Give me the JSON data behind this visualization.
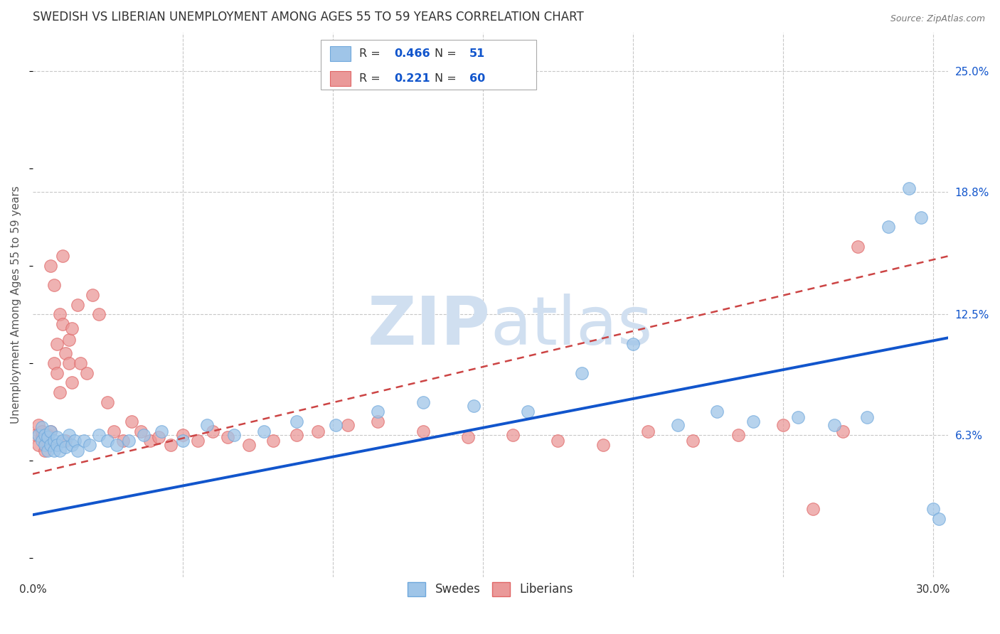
{
  "title": "SWEDISH VS LIBERIAN UNEMPLOYMENT AMONG AGES 55 TO 59 YEARS CORRELATION CHART",
  "source": "Source: ZipAtlas.com",
  "ylabel": "Unemployment Among Ages 55 to 59 years",
  "xlim": [
    0.0,
    0.305
  ],
  "ylim": [
    -0.01,
    0.27
  ],
  "xticks": [
    0.0,
    0.05,
    0.1,
    0.15,
    0.2,
    0.25,
    0.3
  ],
  "xticklabels": [
    "0.0%",
    "",
    "",
    "",
    "",
    "",
    "30.0%"
  ],
  "ytick_labels_right": [
    "25.0%",
    "18.8%",
    "12.5%",
    "6.3%"
  ],
  "ytick_vals_right": [
    0.25,
    0.188,
    0.125,
    0.063
  ],
  "blue_R": 0.466,
  "blue_N": 51,
  "pink_R": 0.221,
  "pink_N": 60,
  "blue_color": "#9fc5e8",
  "pink_color": "#ea9999",
  "blue_edge_color": "#6fa8dc",
  "pink_edge_color": "#e06666",
  "blue_line_color": "#1155cc",
  "pink_line_color": "#cc4444",
  "grid_color": "#c8c8c8",
  "background_color": "#ffffff",
  "watermark_color": "#d0dff0",
  "legend_label_blue": "Swedes",
  "legend_label_pink": "Liberians",
  "blue_x": [
    0.002,
    0.003,
    0.003,
    0.004,
    0.004,
    0.005,
    0.005,
    0.006,
    0.006,
    0.007,
    0.007,
    0.008,
    0.008,
    0.009,
    0.01,
    0.011,
    0.012,
    0.013,
    0.014,
    0.015,
    0.017,
    0.019,
    0.022,
    0.025,
    0.028,
    0.032,
    0.037,
    0.043,
    0.05,
    0.058,
    0.067,
    0.077,
    0.088,
    0.101,
    0.115,
    0.13,
    0.147,
    0.165,
    0.183,
    0.2,
    0.215,
    0.228,
    0.24,
    0.255,
    0.267,
    0.278,
    0.285,
    0.292,
    0.296,
    0.3,
    0.302
  ],
  "blue_y": [
    0.063,
    0.06,
    0.067,
    0.058,
    0.063,
    0.055,
    0.062,
    0.058,
    0.065,
    0.06,
    0.055,
    0.062,
    0.058,
    0.055,
    0.06,
    0.057,
    0.063,
    0.058,
    0.06,
    0.055,
    0.06,
    0.058,
    0.063,
    0.06,
    0.058,
    0.06,
    0.063,
    0.065,
    0.06,
    0.068,
    0.063,
    0.065,
    0.07,
    0.068,
    0.075,
    0.08,
    0.078,
    0.075,
    0.095,
    0.11,
    0.068,
    0.075,
    0.07,
    0.072,
    0.068,
    0.072,
    0.17,
    0.19,
    0.175,
    0.025,
    0.02
  ],
  "pink_x": [
    0.001,
    0.002,
    0.002,
    0.003,
    0.003,
    0.004,
    0.004,
    0.005,
    0.005,
    0.006,
    0.006,
    0.007,
    0.007,
    0.008,
    0.008,
    0.009,
    0.009,
    0.01,
    0.01,
    0.011,
    0.011,
    0.012,
    0.012,
    0.013,
    0.013,
    0.015,
    0.016,
    0.018,
    0.02,
    0.022,
    0.025,
    0.027,
    0.03,
    0.033,
    0.036,
    0.039,
    0.042,
    0.046,
    0.05,
    0.055,
    0.06,
    0.065,
    0.072,
    0.08,
    0.088,
    0.095,
    0.105,
    0.115,
    0.13,
    0.145,
    0.16,
    0.175,
    0.19,
    0.205,
    0.22,
    0.235,
    0.25,
    0.26,
    0.27,
    0.275
  ],
  "pink_y": [
    0.063,
    0.068,
    0.058,
    0.062,
    0.065,
    0.06,
    0.055,
    0.063,
    0.06,
    0.065,
    0.15,
    0.1,
    0.14,
    0.095,
    0.11,
    0.085,
    0.125,
    0.155,
    0.12,
    0.06,
    0.105,
    0.112,
    0.1,
    0.118,
    0.09,
    0.13,
    0.1,
    0.095,
    0.135,
    0.125,
    0.08,
    0.065,
    0.06,
    0.07,
    0.065,
    0.06,
    0.062,
    0.058,
    0.063,
    0.06,
    0.065,
    0.062,
    0.058,
    0.06,
    0.063,
    0.065,
    0.068,
    0.07,
    0.065,
    0.062,
    0.063,
    0.06,
    0.058,
    0.065,
    0.06,
    0.063,
    0.068,
    0.025,
    0.065,
    0.16
  ],
  "blue_line_x0": 0.0,
  "blue_line_y0": 0.022,
  "blue_line_x1": 0.305,
  "blue_line_y1": 0.113,
  "pink_line_x0": 0.0,
  "pink_line_y0": 0.043,
  "pink_line_x1": 0.305,
  "pink_line_y1": 0.155
}
